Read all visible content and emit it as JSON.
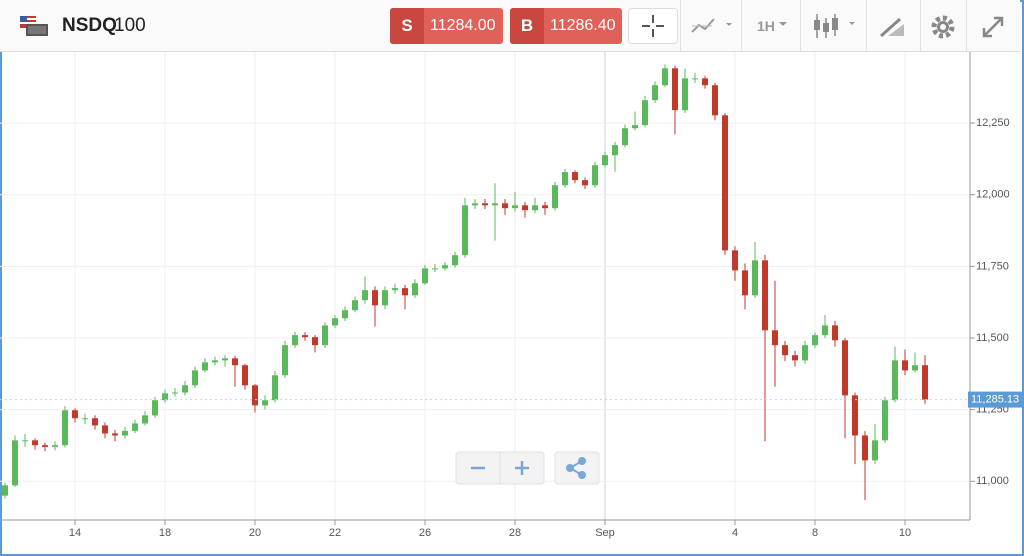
{
  "header": {
    "symbol": "NSDQ",
    "symbol_suffix": "100",
    "sell_label": "S",
    "sell_price": "11284.00",
    "buy_label": "B",
    "buy_price": "11286.40",
    "timeframe": "1H"
  },
  "chart_data": {
    "type": "candlestick",
    "categories": [
      null,
      null,
      null,
      null,
      null,
      null,
      null,
      "14",
      null,
      null,
      null,
      null,
      null,
      null,
      null,
      null,
      "18",
      null,
      null,
      null,
      null,
      null,
      null,
      null,
      null,
      "20",
      null,
      null,
      null,
      null,
      null,
      null,
      null,
      "22",
      null,
      null,
      null,
      null,
      null,
      null,
      null,
      null,
      "26",
      null,
      null,
      null,
      null,
      null,
      null,
      null,
      null,
      "28",
      null,
      null,
      null,
      null,
      null,
      null,
      null,
      null,
      "Sep",
      null,
      null,
      null,
      null,
      null,
      null,
      null,
      null,
      null,
      null,
      null,
      null,
      "4",
      null,
      null,
      null,
      null,
      null,
      null,
      null,
      "8",
      null,
      null,
      null,
      null,
      null,
      null,
      null,
      null,
      "10",
      null,
      null
    ],
    "open": [
      10950,
      10986,
      11143,
      11143,
      11126,
      11120,
      11126,
      11248,
      11220,
      11220,
      11195,
      11167,
      11160,
      11176,
      11202,
      11230,
      11283,
      11307,
      11310,
      11335,
      11387,
      11415,
      11422,
      11429,
      11405,
      11335,
      11265,
      11283,
      11370,
      11475,
      11510,
      11503,
      11475,
      11544,
      11569,
      11597,
      11632,
      11667,
      11614,
      11667,
      11674,
      11649,
      11691,
      11743,
      11743,
      11754,
      11789,
      11963,
      11970,
      11963,
      11970,
      11953,
      11963,
      11946,
      11963,
      11953,
      12033,
      12079,
      12051,
      12033,
      12103,
      12138,
      12173,
      12232,
      12243,
      12330,
      12382,
      12441,
      12295,
      12406,
      12406,
      12382,
      12277,
      11806,
      11736,
      11649,
      11771,
      11527,
      11475,
      11440,
      11422,
      11475,
      11510,
      11544,
      11492,
      11300,
      11160,
      11073,
      11143,
      11283,
      11422,
      11387,
      11405
    ],
    "high": [
      10995,
      11160,
      11165,
      11150,
      11135,
      11140,
      11262,
      11255,
      11236,
      11230,
      11205,
      11180,
      11190,
      11215,
      11245,
      11295,
      11320,
      11325,
      11350,
      11400,
      11430,
      11435,
      11440,
      11438,
      11410,
      11340,
      11300,
      11385,
      11490,
      11522,
      11520,
      11510,
      11555,
      11580,
      11610,
      11645,
      11715,
      11680,
      11680,
      11690,
      11685,
      11705,
      11755,
      11758,
      11765,
      11800,
      11990,
      11985,
      11985,
      12040,
      11985,
      12010,
      11975,
      11990,
      11975,
      12045,
      12090,
      12085,
      12060,
      12115,
      12150,
      12185,
      12245,
      12290,
      12345,
      12395,
      12455,
      12450,
      12440,
      12425,
      12415,
      12390,
      12285,
      11820,
      11760,
      11835,
      11790,
      11700,
      11490,
      11455,
      11490,
      11520,
      11580,
      11560,
      11500,
      11310,
      11175,
      11200,
      11295,
      11470,
      11460,
      11450,
      11440
    ],
    "low": [
      10940,
      10980,
      11120,
      11110,
      11105,
      11108,
      11118,
      11205,
      11200,
      11180,
      11150,
      11140,
      11150,
      11168,
      11195,
      11222,
      11275,
      11295,
      11300,
      11325,
      11380,
      11405,
      11400,
      11330,
      11320,
      11240,
      11250,
      11275,
      11360,
      11465,
      11490,
      11450,
      11465,
      11535,
      11560,
      11590,
      11620,
      11540,
      11600,
      11655,
      11600,
      11640,
      11685,
      11730,
      11735,
      11745,
      11780,
      11950,
      11950,
      11840,
      11930,
      11940,
      11920,
      11935,
      11930,
      11945,
      12025,
      12040,
      12020,
      12025,
      12095,
      12080,
      12165,
      12225,
      12235,
      12320,
      12375,
      12210,
      12285,
      12390,
      12370,
      12260,
      11790,
      11700,
      11600,
      11640,
      11140,
      11330,
      11420,
      11400,
      11410,
      11465,
      11500,
      11470,
      11150,
      11060,
      10935,
      11060,
      11135,
      11275,
      11370,
      11380,
      11270
    ],
    "close": [
      10986,
      11143,
      11143,
      11126,
      11120,
      11126,
      11248,
      11220,
      11220,
      11195,
      11167,
      11160,
      11176,
      11202,
      11230,
      11283,
      11307,
      11310,
      11335,
      11387,
      11415,
      11422,
      11429,
      11405,
      11335,
      11265,
      11283,
      11370,
      11475,
      11510,
      11503,
      11475,
      11544,
      11569,
      11597,
      11632,
      11667,
      11614,
      11667,
      11674,
      11649,
      11691,
      11743,
      11743,
      11754,
      11789,
      11963,
      11970,
      11963,
      11970,
      11953,
      11963,
      11946,
      11963,
      11953,
      12033,
      12079,
      12051,
      12033,
      12103,
      12138,
      12173,
      12232,
      12243,
      12330,
      12382,
      12441,
      12295,
      12406,
      12406,
      12382,
      12277,
      11806,
      11736,
      11649,
      11771,
      11527,
      11475,
      11440,
      11422,
      11475,
      11510,
      11544,
      11492,
      11300,
      11160,
      11073,
      11143,
      11283,
      11422,
      11387,
      11405,
      11285
    ],
    "up_color": "#5cb85c",
    "down_color": "#c0392b",
    "ylim": [
      10865,
      12498
    ],
    "yticks": [
      {
        "value": 11000,
        "label": "11,000"
      },
      {
        "value": 11250,
        "label": "11,250"
      },
      {
        "value": 11500,
        "label": "11,500"
      },
      {
        "value": 11750,
        "label": "11,750"
      },
      {
        "value": 12000,
        "label": "12,000"
      },
      {
        "value": 12250,
        "label": "12,250"
      }
    ],
    "grid": true,
    "last_price": {
      "value": 11285.13,
      "label": "11,285.13"
    }
  }
}
